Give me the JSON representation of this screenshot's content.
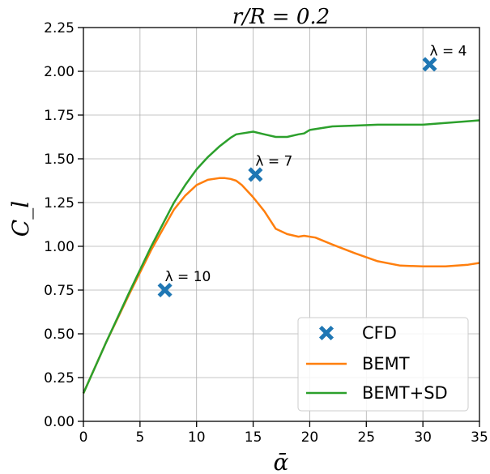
{
  "chart_data": {
    "type": "line",
    "title": "r/R = 0.2",
    "xlabel": "ᾱ",
    "ylabel": "C_l",
    "xlim": [
      0,
      35
    ],
    "ylim": [
      0,
      2.25
    ],
    "xticks": [
      "0",
      "5",
      "10",
      "15",
      "20",
      "25",
      "30",
      "35"
    ],
    "yticks": [
      "0.00",
      "0.25",
      "0.50",
      "0.75",
      "1.00",
      "1.25",
      "1.50",
      "1.75",
      "2.00",
      "2.25"
    ],
    "grid": true,
    "legend_position": "bottom-right",
    "colors": {
      "CFD": "#1f77b4",
      "BEMT": "#ff7f0e",
      "BEMT+SD": "#2ca02c"
    },
    "series": [
      {
        "name": "CFD",
        "kind": "scatter",
        "marker": "X",
        "points": [
          {
            "x": 7.2,
            "y": 0.75,
            "label": "λ = 10"
          },
          {
            "x": 15.2,
            "y": 1.41,
            "label": "λ = 7"
          },
          {
            "x": 30.6,
            "y": 2.04,
            "label": "λ = 4"
          }
        ]
      },
      {
        "name": "BEMT",
        "kind": "line",
        "x": [
          0,
          2,
          4,
          6,
          8,
          9,
          10,
          11,
          12,
          12.5,
          13,
          13.5,
          14,
          15,
          16,
          17,
          18,
          19,
          19.5,
          20,
          20.5,
          22,
          24,
          26,
          28,
          30,
          32,
          34,
          35
        ],
        "y": [
          0.16,
          0.45,
          0.72,
          0.98,
          1.21,
          1.29,
          1.35,
          1.38,
          1.39,
          1.39,
          1.385,
          1.375,
          1.35,
          1.28,
          1.2,
          1.1,
          1.07,
          1.055,
          1.06,
          1.055,
          1.05,
          1.01,
          0.96,
          0.915,
          0.89,
          0.885,
          0.885,
          0.895,
          0.905
        ]
      },
      {
        "name": "BEMT+SD",
        "kind": "line",
        "x": [
          0,
          2,
          4,
          6,
          8,
          9,
          10,
          11,
          12,
          13,
          13.5,
          14,
          15,
          16,
          17,
          18,
          19,
          19.5,
          20,
          22,
          24,
          26,
          28,
          30,
          32,
          34,
          35
        ],
        "y": [
          0.16,
          0.45,
          0.73,
          1.0,
          1.25,
          1.35,
          1.44,
          1.51,
          1.57,
          1.62,
          1.64,
          1.645,
          1.655,
          1.64,
          1.625,
          1.625,
          1.64,
          1.645,
          1.665,
          1.685,
          1.69,
          1.695,
          1.695,
          1.695,
          1.705,
          1.715,
          1.72
        ]
      }
    ]
  }
}
